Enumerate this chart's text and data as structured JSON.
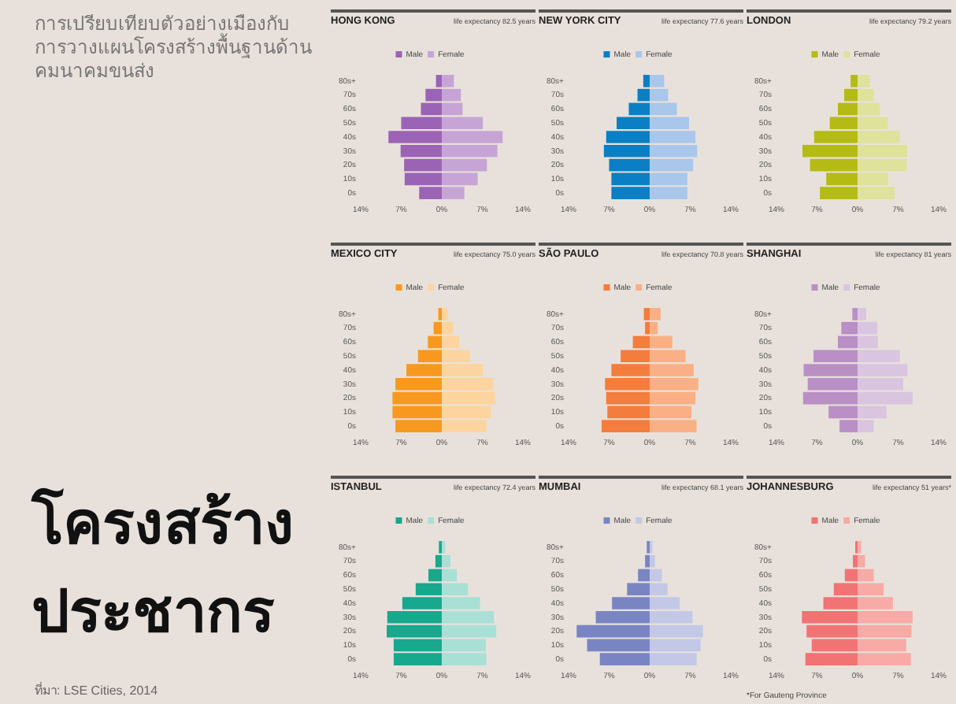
{
  "chart_data": [
    {
      "type": "other",
      "title": "โครงสร้างประชากร",
      "subtitle": "การเปรียบเทียบตัวอย่างเมืองกับการวางแผนโครงสร้างพื้นฐานด้านคมนาคมขนส่ง",
      "annotations": [
        "ที่มา: LSE Cities, 2014"
      ]
    },
    {
      "type": "bar",
      "orientation": "horizontal",
      "stacked": true,
      "legend": "top",
      "title": "HONG KONG",
      "subtitle": "life expectancy 82.5 years",
      "categories": [
        "80s+",
        "70s",
        "60s",
        "50s",
        "40s",
        "30s",
        "20s",
        "10s",
        "0s"
      ],
      "xlim": [
        -14,
        14
      ],
      "xticks": [
        {
          "value": -14,
          "label": "14%"
        },
        {
          "value": -7,
          "label": "7%"
        },
        {
          "value": 0,
          "label": "0%"
        },
        {
          "value": 7,
          "label": "7%"
        },
        {
          "value": 14,
          "label": "14%"
        }
      ],
      "series": [
        {
          "name": "Male",
          "color": "#9b63b5",
          "values": [
            -1.0,
            -2.8,
            -3.6,
            -7.0,
            -9.2,
            -7.1,
            -6.5,
            -6.4,
            -3.9
          ]
        },
        {
          "name": "Female",
          "color": "#c6a5d6",
          "values": [
            2.1,
            3.3,
            3.6,
            7.1,
            10.5,
            9.6,
            7.8,
            6.2,
            3.9
          ]
        }
      ]
    },
    {
      "type": "bar",
      "orientation": "horizontal",
      "stacked": true,
      "legend": "top",
      "title": "NEW YORK CITY",
      "subtitle": "life expectancy 77.6 years",
      "categories": [
        "80s+",
        "70s",
        "60s",
        "50s",
        "40s",
        "30s",
        "20s",
        "10s",
        "0s"
      ],
      "xlim": [
        -14,
        14
      ],
      "xticks": [
        {
          "value": -14,
          "label": "14%"
        },
        {
          "value": -7,
          "label": "7%"
        },
        {
          "value": 0,
          "label": "0%"
        },
        {
          "value": 7,
          "label": "7%"
        },
        {
          "value": 14,
          "label": "14%"
        }
      ],
      "series": [
        {
          "name": "Male",
          "color": "#0a7fc4",
          "values": [
            -1.1,
            -2.1,
            -3.6,
            -5.7,
            -7.5,
            -7.9,
            -7.0,
            -6.6,
            -6.6
          ]
        },
        {
          "name": "Female",
          "color": "#a9c7ea",
          "values": [
            2.5,
            3.2,
            4.7,
            6.8,
            7.9,
            8.2,
            7.5,
            6.5,
            6.5
          ]
        }
      ]
    },
    {
      "type": "bar",
      "orientation": "horizontal",
      "stacked": true,
      "legend": "top",
      "title": "LONDON",
      "subtitle": "life expectancy 79.2 years",
      "categories": [
        "80s+",
        "70s",
        "60s",
        "50s",
        "40s",
        "30s",
        "20s",
        "10s",
        "0s"
      ],
      "xlim": [
        -14,
        14
      ],
      "xticks": [
        {
          "value": -14,
          "label": "14%"
        },
        {
          "value": -7,
          "label": "7%"
        },
        {
          "value": 0,
          "label": "0%"
        },
        {
          "value": 7,
          "label": "7%"
        },
        {
          "value": 14,
          "label": "14%"
        }
      ],
      "series": [
        {
          "name": "Male",
          "color": "#b4bb15",
          "values": [
            -1.2,
            -2.3,
            -3.4,
            -4.8,
            -7.5,
            -9.5,
            -8.2,
            -5.4,
            -6.5
          ]
        },
        {
          "name": "Female",
          "color": "#dee29a",
          "values": [
            2.1,
            2.8,
            3.8,
            5.2,
            7.3,
            8.6,
            8.5,
            5.3,
            6.4
          ]
        }
      ]
    },
    {
      "type": "bar",
      "orientation": "horizontal",
      "stacked": true,
      "legend": "top",
      "title": "MEXICO CITY",
      "subtitle": "life expectancy 75.0 years",
      "categories": [
        "80s+",
        "70s",
        "60s",
        "50s",
        "40s",
        "30s",
        "20s",
        "10s",
        "0s"
      ],
      "xlim": [
        -14,
        14
      ],
      "xticks": [
        {
          "value": -14,
          "label": "14%"
        },
        {
          "value": -7,
          "label": "7%"
        },
        {
          "value": 0,
          "label": "0%"
        },
        {
          "value": 7,
          "label": "7%"
        },
        {
          "value": 14,
          "label": "14%"
        }
      ],
      "series": [
        {
          "name": "Male",
          "color": "#f7991f",
          "values": [
            -0.6,
            -1.4,
            -2.4,
            -4.1,
            -6.1,
            -8.0,
            -8.5,
            -8.5,
            -8.0
          ]
        },
        {
          "name": "Female",
          "color": "#fdd49d",
          "values": [
            1.0,
            2.0,
            3.0,
            4.9,
            7.1,
            8.9,
            9.2,
            8.5,
            7.7
          ]
        }
      ]
    },
    {
      "type": "bar",
      "orientation": "horizontal",
      "stacked": true,
      "legend": "top",
      "title": "SÃO PAULO",
      "subtitle": "life expectancy 70.8 years",
      "categories": [
        "80s+",
        "70s",
        "60s",
        "50s",
        "40s",
        "30s",
        "20s",
        "10s",
        "0s"
      ],
      "xlim": [
        -14,
        14
      ],
      "xticks": [
        {
          "value": -14,
          "label": "14%"
        },
        {
          "value": -7,
          "label": "7%"
        },
        {
          "value": 0,
          "label": "0%"
        },
        {
          "value": 7,
          "label": "7%"
        },
        {
          "value": 14,
          "label": "14%"
        }
      ],
      "series": [
        {
          "name": "Male",
          "color": "#f47c3c",
          "values": [
            -1.0,
            -0.8,
            -2.9,
            -5.0,
            -6.6,
            -7.7,
            -7.5,
            -7.3,
            -8.3
          ]
        },
        {
          "name": "Female",
          "color": "#fab084",
          "values": [
            1.9,
            1.4,
            3.9,
            6.2,
            7.6,
            8.4,
            7.9,
            7.2,
            8.1
          ]
        }
      ]
    },
    {
      "type": "bar",
      "orientation": "horizontal",
      "stacked": true,
      "legend": "top",
      "title": "SHANGHAI",
      "subtitle": "life expectancy 81 years",
      "categories": [
        "80s+",
        "70s",
        "60s",
        "50s",
        "40s",
        "30s",
        "20s",
        "10s",
        "0s"
      ],
      "xlim": [
        -14,
        14
      ],
      "xticks": [
        {
          "value": -14,
          "label": "14%"
        },
        {
          "value": -7,
          "label": "7%"
        },
        {
          "value": 0,
          "label": "0%"
        },
        {
          "value": 7,
          "label": "7%"
        },
        {
          "value": 14,
          "label": "14%"
        }
      ],
      "series": [
        {
          "name": "Male",
          "color": "#b98fc5",
          "values": [
            -0.9,
            -2.8,
            -3.4,
            -7.6,
            -9.3,
            -8.6,
            -9.4,
            -5.0,
            -3.1
          ]
        },
        {
          "name": "Female",
          "color": "#d9c5e0",
          "values": [
            1.5,
            3.4,
            3.5,
            7.3,
            8.6,
            7.9,
            9.5,
            5.0,
            2.8
          ]
        }
      ]
    },
    {
      "type": "bar",
      "orientation": "horizontal",
      "stacked": true,
      "legend": "top",
      "title": "ISTANBUL",
      "subtitle": "life expectancy 72.4 years",
      "categories": [
        "80s+",
        "70s",
        "60s",
        "50s",
        "40s",
        "30s",
        "20s",
        "10s",
        "0s"
      ],
      "xlim": [
        -14,
        14
      ],
      "xticks": [
        {
          "value": -14,
          "label": "14%"
        },
        {
          "value": -7,
          "label": "7%"
        },
        {
          "value": 0,
          "label": "0%"
        },
        {
          "value": 7,
          "label": "7%"
        },
        {
          "value": 14,
          "label": "14%"
        }
      ],
      "series": [
        {
          "name": "Male",
          "color": "#17a88e",
          "values": [
            -0.5,
            -1.1,
            -2.3,
            -4.5,
            -6.8,
            -9.4,
            -9.5,
            -8.3,
            -8.3
          ]
        },
        {
          "name": "Female",
          "color": "#a8e0d6",
          "values": [
            0.6,
            1.5,
            2.6,
            4.5,
            6.6,
            9.0,
            9.4,
            7.6,
            7.7
          ]
        }
      ]
    },
    {
      "type": "bar",
      "orientation": "horizontal",
      "stacked": true,
      "legend": "top",
      "title": "MUMBAI",
      "subtitle": "life expectancy 68.1 years",
      "categories": [
        "80s+",
        "70s",
        "60s",
        "50s",
        "40s",
        "30s",
        "20s",
        "10s",
        "0s"
      ],
      "xlim": [
        -14,
        14
      ],
      "xticks": [
        {
          "value": -14,
          "label": "14%"
        },
        {
          "value": -7,
          "label": "7%"
        },
        {
          "value": 0,
          "label": "0%"
        },
        {
          "value": 7,
          "label": "7%"
        },
        {
          "value": 14,
          "label": "14%"
        }
      ],
      "series": [
        {
          "name": "Male",
          "color": "#7985c3",
          "values": [
            -0.5,
            -0.8,
            -2.0,
            -3.9,
            -6.5,
            -9.3,
            -12.6,
            -10.8,
            -8.6
          ]
        },
        {
          "name": "Female",
          "color": "#c3c8e6",
          "values": [
            0.5,
            0.9,
            2.1,
            3.1,
            5.2,
            7.4,
            9.2,
            8.8,
            8.1
          ]
        }
      ]
    },
    {
      "type": "bar",
      "orientation": "horizontal",
      "stacked": true,
      "legend": "top",
      "title": "JOHANNESBURG",
      "subtitle": "life expectancy 51 years*",
      "annotations": [
        "*For Gauteng Province"
      ],
      "categories": [
        "80s+",
        "70s",
        "60s",
        "50s",
        "40s",
        "30s",
        "20s",
        "10s",
        "0s"
      ],
      "xlim": [
        -14,
        14
      ],
      "xticks": [
        {
          "value": -14,
          "label": "14%"
        },
        {
          "value": -7,
          "label": "7%"
        },
        {
          "value": 0,
          "label": "0%"
        },
        {
          "value": 7,
          "label": "7%"
        },
        {
          "value": 14,
          "label": "14%"
        }
      ],
      "series": [
        {
          "name": "Male",
          "color": "#f27374",
          "values": [
            -0.4,
            -0.8,
            -2.2,
            -4.1,
            -5.9,
            -9.6,
            -8.8,
            -7.9,
            -9.0
          ]
        },
        {
          "name": "Female",
          "color": "#f8aaa6",
          "values": [
            0.6,
            1.3,
            2.8,
            4.5,
            6.1,
            9.5,
            9.3,
            8.4,
            9.2
          ]
        }
      ]
    }
  ]
}
